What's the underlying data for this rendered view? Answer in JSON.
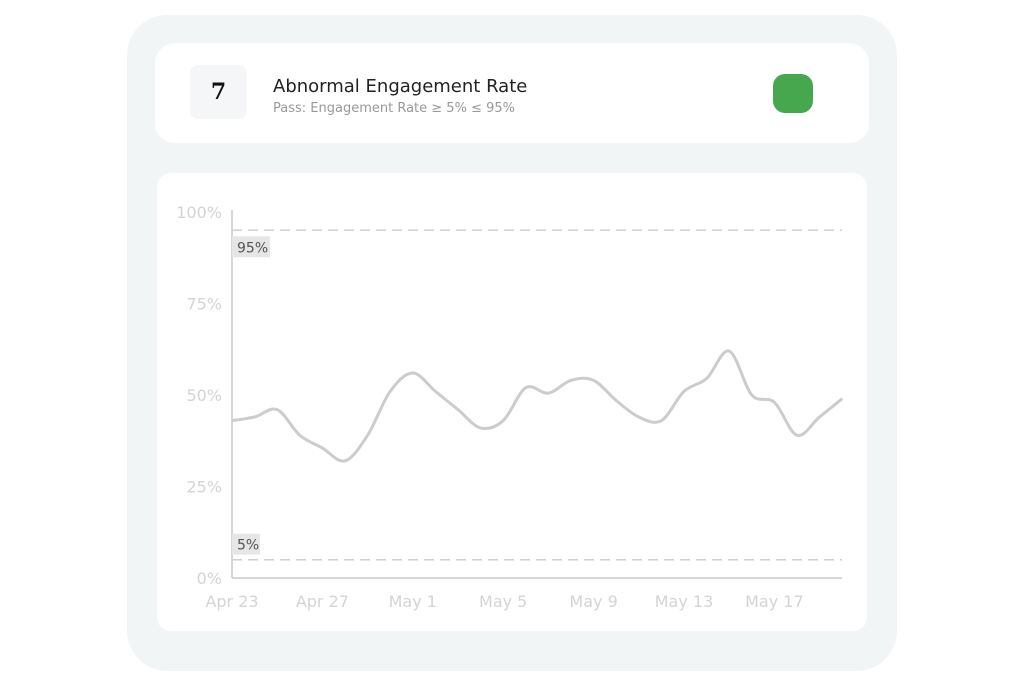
{
  "header": {
    "number": "7",
    "title": "Abnormal Engagement Rate",
    "subtitle": "Pass: Engagement Rate ≥ 5%  ≤ 95%",
    "status_color": "#46a74e"
  },
  "chart_data": {
    "type": "line",
    "title": "",
    "xlabel": "",
    "ylabel": "",
    "ylim": [
      0,
      100
    ],
    "y_ticks": [
      "0%",
      "25%",
      "50%",
      "75%",
      "100%"
    ],
    "x_ticks": [
      "Apr 23",
      "Apr 27",
      "May 1",
      "May 5",
      "May 9",
      "May 13",
      "May 17"
    ],
    "grid": false,
    "line_color": "#cccccc",
    "thresholds": [
      {
        "value": 95,
        "label": "95%"
      },
      {
        "value": 5,
        "label": "5%"
      }
    ],
    "x": [
      "Apr 23",
      "Apr 24",
      "Apr 25",
      "Apr 26",
      "Apr 27",
      "Apr 28",
      "Apr 29",
      "Apr 30",
      "May 1",
      "May 2",
      "May 3",
      "May 4",
      "May 5",
      "May 6",
      "May 7",
      "May 8",
      "May 9",
      "May 10",
      "May 11",
      "May 12",
      "May 13",
      "May 14",
      "May 15",
      "May 16",
      "May 17",
      "May 18",
      "May 19",
      "May 20"
    ],
    "values": [
      43,
      44,
      46,
      39,
      35.5,
      32,
      39,
      51,
      56,
      51,
      46,
      41,
      43,
      52,
      50.5,
      54,
      54,
      48.5,
      44,
      43,
      51,
      54.5,
      62,
      50,
      48,
      39,
      44,
      49
    ]
  }
}
